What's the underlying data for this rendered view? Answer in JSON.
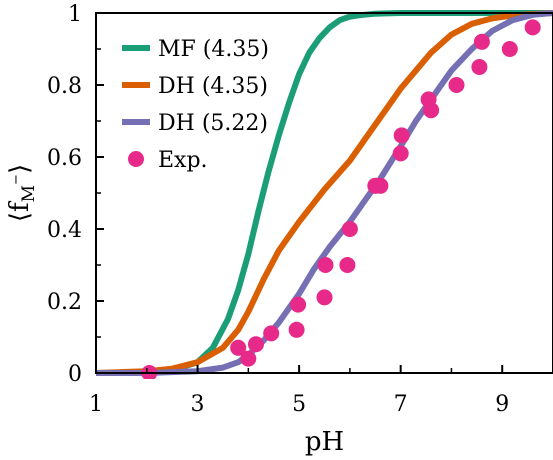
{
  "chart_data": {
    "type": "line",
    "xlabel": "pH",
    "ylabel": "⟨f",
    "ylabel_sub": "M",
    "ylabel_sup": "−",
    "ylabel_close": "⟩",
    "xlim": [
      1,
      10
    ],
    "ylim": [
      0,
      1
    ],
    "xticks": [
      1,
      3,
      5,
      7,
      9
    ],
    "yticks": [
      0,
      0.2,
      0.4,
      0.6,
      0.8,
      1
    ],
    "ytick_labels": [
      "0",
      "0.2",
      "0.4",
      "0.6",
      "0.8",
      "1"
    ],
    "grid": false,
    "legend_position": "top-left",
    "series": [
      {
        "name": "MF (4.35)",
        "kind": "line",
        "color": "#1b9e77",
        "x": [
          1.0,
          2.0,
          2.5,
          3.0,
          3.3,
          3.6,
          3.8,
          4.0,
          4.2,
          4.4,
          4.6,
          4.8,
          5.0,
          5.2,
          5.4,
          5.6,
          5.8,
          6.0,
          6.2,
          6.5,
          7.0,
          7.5,
          8.0,
          9.0,
          10.0
        ],
        "y": [
          0.0,
          0.002,
          0.008,
          0.03,
          0.07,
          0.15,
          0.23,
          0.33,
          0.45,
          0.56,
          0.66,
          0.75,
          0.83,
          0.89,
          0.93,
          0.96,
          0.98,
          0.99,
          0.994,
          0.998,
          1.0,
          1.0,
          1.0,
          1.0,
          1.0
        ]
      },
      {
        "name": "DH (4.35)",
        "kind": "line",
        "color": "#d95f02",
        "x": [
          1.0,
          2.0,
          2.5,
          3.0,
          3.5,
          3.8,
          4.0,
          4.3,
          4.6,
          5.0,
          5.5,
          6.0,
          6.3,
          6.6,
          7.0,
          7.3,
          7.6,
          8.0,
          8.4,
          8.8,
          9.2,
          9.6,
          10.0
        ],
        "y": [
          0.0,
          0.005,
          0.012,
          0.03,
          0.07,
          0.12,
          0.17,
          0.26,
          0.34,
          0.42,
          0.51,
          0.59,
          0.65,
          0.71,
          0.79,
          0.84,
          0.89,
          0.94,
          0.97,
          0.985,
          0.993,
          0.997,
          1.0
        ]
      },
      {
        "name": "DH (5.22)",
        "kind": "line",
        "color": "#7570b3",
        "x": [
          1.0,
          2.0,
          3.0,
          3.5,
          3.8,
          4.0,
          4.3,
          4.6,
          5.0,
          5.3,
          5.6,
          6.0,
          6.3,
          6.6,
          7.0,
          7.3,
          7.6,
          8.0,
          8.4,
          8.8,
          9.2,
          9.6,
          10.0
        ],
        "y": [
          0.0,
          0.0,
          0.005,
          0.015,
          0.03,
          0.05,
          0.09,
          0.14,
          0.22,
          0.29,
          0.35,
          0.42,
          0.48,
          0.54,
          0.63,
          0.7,
          0.76,
          0.84,
          0.9,
          0.95,
          0.98,
          0.995,
          1.0
        ]
      },
      {
        "name": "Exp.",
        "kind": "scatter",
        "color": "#e7298a",
        "x": [
          2.05,
          3.8,
          4.0,
          4.15,
          4.45,
          4.95,
          4.98,
          5.5,
          5.52,
          5.95,
          6.0,
          6.5,
          6.6,
          7.0,
          7.02,
          7.55,
          7.6,
          8.1,
          8.55,
          8.6,
          9.15,
          9.6
        ],
        "y": [
          0.0,
          0.07,
          0.04,
          0.08,
          0.11,
          0.12,
          0.19,
          0.21,
          0.3,
          0.3,
          0.4,
          0.52,
          0.52,
          0.61,
          0.66,
          0.76,
          0.73,
          0.8,
          0.85,
          0.92,
          0.9,
          0.96
        ]
      }
    ]
  }
}
